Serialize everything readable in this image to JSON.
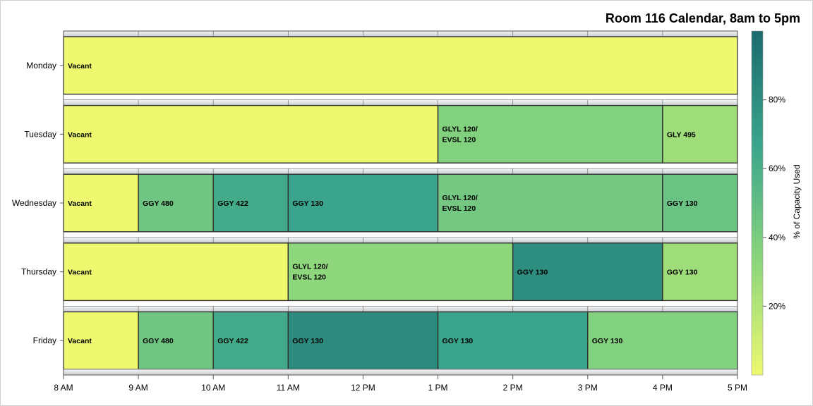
{
  "chart_data": {
    "type": "bar",
    "orientation": "horizontal-gantt",
    "title": "Room 116 Calendar, 8am to 5pm",
    "x_ticks": [
      "8 AM",
      "9 AM",
      "10 AM",
      "11 AM",
      "12 PM",
      "1 PM",
      "2 PM",
      "3 PM",
      "4 PM",
      "5 PM"
    ],
    "xlim": [
      8,
      17
    ],
    "days": [
      "Monday",
      "Tuesday",
      "Wednesday",
      "Thursday",
      "Friday"
    ],
    "color_scale": {
      "title": "% of Capacity Used",
      "ticks": [
        "20%",
        "40%",
        "60%",
        "80%"
      ],
      "tick_values": [
        20,
        40,
        60,
        80
      ],
      "range": [
        0,
        100
      ],
      "colors": [
        "#eef970",
        "#8bd67c",
        "#3aa58c",
        "#1b6b6e"
      ]
    },
    "bookings": [
      {
        "day": "Monday",
        "start": 8,
        "end": 17,
        "label": [
          "Vacant"
        ],
        "capacity": 0
      },
      {
        "day": "Tuesday",
        "start": 8,
        "end": 13,
        "label": [
          "Vacant"
        ],
        "capacity": 0
      },
      {
        "day": "Tuesday",
        "start": 13,
        "end": 16,
        "label": [
          "GLYL 120/",
          "EVSL 120"
        ],
        "capacity": 37
      },
      {
        "day": "Tuesday",
        "start": 16,
        "end": 17,
        "label": [
          "GLY 495"
        ],
        "capacity": 27
      },
      {
        "day": "Wednesday",
        "start": 8,
        "end": 9,
        "label": [
          "Vacant"
        ],
        "capacity": 0
      },
      {
        "day": "Wednesday",
        "start": 9,
        "end": 10,
        "label": [
          "GGY 480"
        ],
        "capacity": 45
      },
      {
        "day": "Wednesday",
        "start": 10,
        "end": 11,
        "label": [
          "GGY 422"
        ],
        "capacity": 63
      },
      {
        "day": "Wednesday",
        "start": 11,
        "end": 13,
        "label": [
          "GGY 130"
        ],
        "capacity": 67
      },
      {
        "day": "Wednesday",
        "start": 13,
        "end": 16,
        "label": [
          "GLYL 120/",
          "EVSL 120"
        ],
        "capacity": 43
      },
      {
        "day": "Wednesday",
        "start": 16,
        "end": 17,
        "label": [
          "GGY 130"
        ],
        "capacity": 47
      },
      {
        "day": "Thursday",
        "start": 8,
        "end": 11,
        "label": [
          "Vacant"
        ],
        "capacity": 0
      },
      {
        "day": "Thursday",
        "start": 11,
        "end": 14,
        "label": [
          "GLYL 120/",
          "EVSL 120"
        ],
        "capacity": 32
      },
      {
        "day": "Thursday",
        "start": 14,
        "end": 16,
        "label": [
          "GGY 130"
        ],
        "capacity": 80
      },
      {
        "day": "Thursday",
        "start": 16,
        "end": 17,
        "label": [
          "GGY 130"
        ],
        "capacity": 27
      },
      {
        "day": "Friday",
        "start": 8,
        "end": 9,
        "label": [
          "Vacant"
        ],
        "capacity": 0
      },
      {
        "day": "Friday",
        "start": 9,
        "end": 10,
        "label": [
          "GGY 480"
        ],
        "capacity": 45
      },
      {
        "day": "Friday",
        "start": 10,
        "end": 11,
        "label": [
          "GGY 422"
        ],
        "capacity": 63
      },
      {
        "day": "Friday",
        "start": 11,
        "end": 13,
        "label": [
          "GGY 130"
        ],
        "capacity": 82
      },
      {
        "day": "Friday",
        "start": 13,
        "end": 15,
        "label": [
          "GGY 130"
        ],
        "capacity": 67
      },
      {
        "day": "Friday",
        "start": 15,
        "end": 17,
        "label": [
          "GGY 130"
        ],
        "capacity": 37
      }
    ]
  }
}
